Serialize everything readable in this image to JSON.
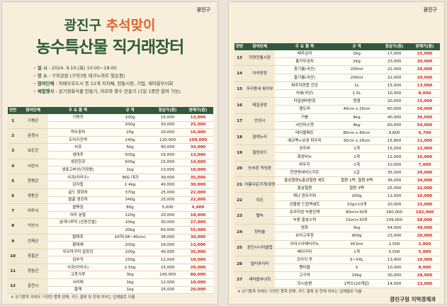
{
  "logo": "광진구",
  "left": {
    "title_a": "광진구 ",
    "title_b": "추석맞이",
    "title2": "농수특산물 직거래장터",
    "info": [
      {
        "label": "일 시",
        "text": " : 2024. 9.10.(화) 10:00~18:00"
      },
      {
        "label": "장 소",
        "text": " : 구의공원 (구의3동 테크노마트 맞은편)"
      },
      {
        "label": "참여단체",
        "text": " : 자매우호도시 등 12개 지자체, 전통시장, 기업, 새마을부녀회"
      },
      {
        "label": "체험행사",
        "text": " : 공기정화식물 만들기, 아로마 향수 만들기 (1일 1종만 참여 가능)"
      }
    ],
    "headers": [
      "연번",
      "참여단체",
      "주 요 품 목",
      "규 격",
      "정상가(원)",
      "판매가(원)"
    ],
    "groups": [
      {
        "no": "1",
        "org": "가평군",
        "items": [
          [
            "가평잣",
            "100g",
            "15,000",
            "13,000"
          ],
          [
            "",
            "200g",
            "30,000",
            "25,000"
          ]
        ]
      },
      {
        "no": "2",
        "org": "문경시",
        "items": [
          [
            "적두중차",
            "20g",
            "20,000",
            "16,000"
          ],
          [
            "도라지진액",
            "240g",
            "120,000",
            "100,000"
          ]
        ]
      },
      {
        "no": "3",
        "org": "보은군",
        "items": [
          [
            "서과",
            "5kg",
            "40,000",
            "34,000"
          ],
          [
            "생대추",
            "500g",
            "16,000",
            "13,000"
          ]
        ]
      },
      {
        "no": "4",
        "org": "서산시",
        "items": [
          [
            "생강한과",
            "500g",
            "15,000",
            "14,000"
          ],
          [
            "생표고버섯(가정용)",
            "1kg",
            "13,000",
            "10,000"
          ]
        ]
      },
      {
        "no": "5",
        "org": "양평군",
        "items": [
          [
            "사과(아리수)",
            "3KG 대과",
            "39,000",
            "35,000"
          ],
          [
            "감자칩",
            "2.4kg",
            "40,000",
            "30,000"
          ]
        ]
      },
      {
        "no": "6",
        "org": "영동군",
        "items": [
          [
            "골드 항화차",
            "370g",
            "25,000",
            "22,000"
          ],
          [
            "벌꿀 생강차",
            "340g",
            "25,000",
            "22,000"
          ]
        ]
      },
      {
        "no": "7",
        "org": "여주시",
        "items": [
          [
            "쌀볶임",
            "80g",
            "5,000",
            "4,000"
          ],
          [
            "여주 분말",
            "120g",
            "20,000",
            "18,000"
          ]
        ]
      },
      {
        "no": "8",
        "org": "익산시",
        "items": [
          [
            "굼개나루미 (신동진쌀)",
            "10kg",
            "30,000",
            "27,000"
          ],
          [
            "",
            "20kg",
            "60,000",
            "55,000"
          ]
        ]
      },
      {
        "no": "9",
        "org": "인제군",
        "items": [
          [
            "황태포",
            "10미(38~40cm)",
            "38,000",
            "30,000"
          ],
          [
            "황태채",
            "200g",
            "16,000",
            "13,000"
          ]
        ]
      },
      {
        "no": "10",
        "org": "장흥군",
        "items": [
          [
            "무오마구미 곰장깅",
            "100g",
            "40,000",
            "35,000"
          ],
          [
            "김부각",
            "150g",
            "12,000",
            "10,000"
          ]
        ]
      },
      {
        "no": "11",
        "org": "청송군",
        "items": [
          [
            "사과(아리수)",
            "2.5kg",
            "25,000",
            "20,000"
          ],
          [
            "고춧가루",
            "3kg",
            "100,000",
            "80,000"
          ]
        ]
      },
      {
        "no": "12",
        "org": "춘천시",
        "items": [
          [
            "서리태",
            "1kg",
            "12,000",
            "10,000"
          ],
          [
            "들깨",
            "1kg",
            "25,000",
            "20,000"
          ]
        ]
      }
    ],
    "note": "※ 상기품목 외에도 다양한 품목 판매, 카드 결제 및 현재 여부는 업체별로 다름"
  },
  "right": {
    "headers": [
      "연번",
      "참여단체",
      "주 요 품 목",
      "규 격",
      "정상가(원)",
      "판매가(원)"
    ],
    "groups": [
      {
        "no": "13",
        "org": "자양전통시장",
        "items": [
          [
            "배추김치",
            "1Kg",
            "17,000",
            "15,000"
          ],
          [
            "총각무김치",
            "1Kg",
            "23,000",
            "20,000"
          ]
        ]
      },
      {
        "no": "14",
        "org": "아리랑정",
        "items": [
          [
            "참기름(국산)",
            "200ml",
            "22,000",
            "20,000"
          ],
          [
            "들기름(국산)",
            "200ml",
            "22,000",
            "20,000"
          ]
        ]
      },
      {
        "no": "15",
        "org": "우리동네 복지부",
        "items": [
          [
            "짜주자연즙 건강",
            "1L",
            "15,000",
            "13,000"
          ],
          [
            "식혜(국산)",
            "1.5L",
            "10,000",
            "8,000"
          ]
        ]
      },
      {
        "no": "16",
        "org": "태일공방",
        "items": [
          [
            "타일냄비받침",
            "원형",
            "20,000",
            "15,000"
          ],
          [
            "행도마",
            "40cm x 20cm",
            "60,000",
            "50,000"
          ]
        ]
      },
      {
        "no": "17",
        "org": "안성시",
        "items": [
          [
            "거봉",
            "4kg",
            "40,000",
            "36,000"
          ],
          [
            "샤인머스켓",
            "4kg",
            "60,000",
            "54,000"
          ]
        ]
      },
      {
        "no": "18",
        "org": "함께누리",
        "items": [
          [
            "테이블매트",
            "80cm x 40cm",
            "9,800",
            "6,700"
          ],
          [
            "에코백+보냉 파우치",
            "30cm x 26cm",
            "15,800",
            "11,000"
          ]
        ]
      },
      {
        "no": "19",
        "org": "힐링위드",
        "items": [
          [
            "성주바",
            "1개",
            "15,000",
            "12,000"
          ],
          [
            "화장비누",
            "1개",
            "12,000",
            "10,000"
          ]
        ]
      },
      {
        "no": "20",
        "org": "농부촌 믹딩판",
        "items": [
          [
            "파우지",
            "1개",
            "10,000",
            "7,000"
          ],
          [
            "천연멘세석스키트",
            "1갑",
            "35,000",
            "29,000"
          ]
        ]
      },
      {
        "no": "21",
        "org": "아름다운가게(화양점)",
        "items": [
          [
            "홍삼절편&홍삼절편 세트",
            "절편 1박, 절편 6팩",
            "36,000",
            "34,000"
          ],
          [
            "홍삼절편",
            "절편 3팩",
            "25,000",
            "22,000"
          ]
        ]
      },
      {
        "no": "22",
        "org": "이든",
        "items": [
          [
            "케냐 원두커피",
            "200g",
            "12,000",
            "10,000"
          ],
          [
            "선물용 드립백세트",
            "10g×10개",
            "20,000",
            "15,000"
          ]
        ]
      },
      {
        "no": "23",
        "org": "탤녹",
        "items": [
          [
            "프리미엄 녹용진액",
            "80ml×30포",
            "260,000",
            "182,000"
          ],
          [
            "녹용 홍삼스틱",
            "15ml×30포",
            "109,000",
            "58,000"
          ]
        ]
      },
      {
        "no": "24",
        "org": "정마솔",
        "items": [
          [
            "쌍화",
            "3kg",
            "54,000",
            "49,000"
          ],
          [
            "보리고추장",
            "900g",
            "23,000",
            "20,000"
          ]
        ]
      },
      {
        "no": "25",
        "org": "광진시니어클럽",
        "items": [
          [
            "아이스아메리카노",
            "453ml",
            "2,500",
            "2,000"
          ],
          [
            "베이커리",
            "1개",
            "5,500",
            "5,000"
          ]
        ]
      },
      {
        "no": "26",
        "org": "멀티푸키터",
        "items": [
          [
            "강아지 옷",
            "S~XXL",
            "13,900",
            "10,000"
          ],
          [
            "펫터울",
            "S",
            "10,000",
            "8,000"
          ]
        ]
      },
      {
        "no": "27",
        "org": "새마을부녀회",
        "items": [
          [
            "고구마",
            "10kg",
            "30,000",
            "28,000"
          ],
          [
            "모시송편",
            "1박스(20개입)",
            "14,000",
            "13,000"
          ]
        ]
      }
    ],
    "note": "※ 상기품목 외에도 다양한 품목 판매, 카드 결제 및 현재 여부는 업체별로 다름",
    "footer": "광진구청 지역경제과"
  }
}
